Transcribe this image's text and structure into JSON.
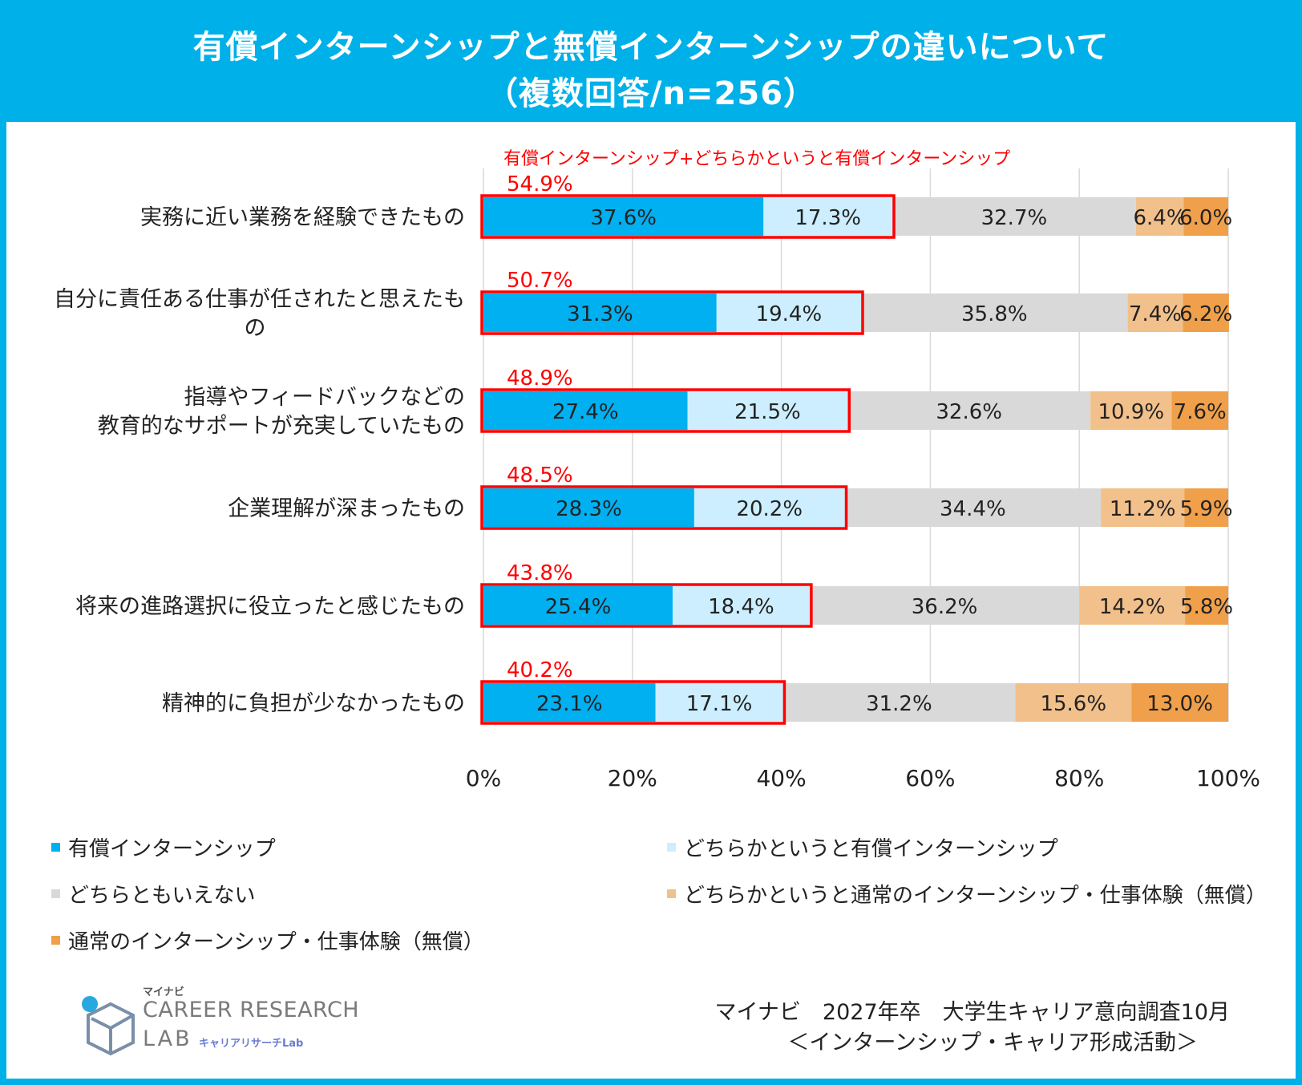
{
  "title": {
    "line1": "有償インターンシップと無償インターンシップの違いについて",
    "line2": "（複数回答/n=256）"
  },
  "chart_data": {
    "type": "bar",
    "orientation": "horizontal",
    "stacked": true,
    "percent_stacked": true,
    "xlim": [
      0,
      100
    ],
    "x_ticks": [
      "0%",
      "20%",
      "40%",
      "60%",
      "80%",
      "100%"
    ],
    "x_tick_values": [
      0,
      20,
      40,
      60,
      80,
      100
    ],
    "grid": "vertical",
    "highlight_label": "有償インターンシップ+どちらかというと有償インターンシップ",
    "categories": [
      [
        "実務に近い業務を経験できたもの"
      ],
      [
        "自分に責任ある仕事が任されたと思えたも",
        "の"
      ],
      [
        "指導やフィードバックなどの",
        "教育的なサポートが充実していたもの"
      ],
      [
        "企業理解が深まったもの"
      ],
      [
        "将来の進路選択に役立ったと感じたもの"
      ],
      [
        "精神的に負担が少なかったもの"
      ]
    ],
    "series": [
      {
        "name": "有償インターンシップ",
        "color": "#00b0f0",
        "values": [
          37.6,
          31.3,
          27.4,
          28.3,
          25.4,
          23.1
        ],
        "labels": [
          "37.6%",
          "31.3%",
          "27.4%",
          "28.3%",
          "25.4%",
          "23.1%"
        ]
      },
      {
        "name": "どちらかというと有償インターンシップ",
        "color": "#cceeff",
        "values": [
          17.3,
          19.4,
          21.5,
          20.2,
          18.4,
          17.1
        ],
        "labels": [
          "17.3%",
          "19.4%",
          "21.5%",
          "20.2%",
          "18.4%",
          "17.1%"
        ]
      },
      {
        "name": "どちらともいえない",
        "color": "#d9d9d9",
        "values": [
          32.7,
          35.8,
          32.6,
          34.4,
          36.2,
          31.2
        ],
        "labels": [
          "32.7%",
          "35.8%",
          "32.6%",
          "34.4%",
          "36.2%",
          "31.2%"
        ]
      },
      {
        "name": "どちらかというと通常のインターンシップ・仕事体験（無償）",
        "color": "#f2c08a",
        "values": [
          6.4,
          7.4,
          10.9,
          11.2,
          14.2,
          15.6
        ],
        "labels": [
          "6.4%",
          "7.4%",
          "10.9%",
          "11.2%",
          "14.2%",
          "15.6%"
        ]
      },
      {
        "name": "通常のインターンシップ・仕事体験（無償）",
        "color": "#f0a04b",
        "values": [
          6.0,
          6.2,
          7.6,
          5.9,
          5.8,
          13.0
        ],
        "labels": [
          "6.0%",
          "6.2%",
          "7.6%",
          "5.9%",
          "5.8%",
          "13.0%"
        ]
      }
    ],
    "highlight_totals": [
      54.9,
      50.7,
      48.9,
      48.5,
      43.8,
      40.2
    ],
    "highlight_total_labels": [
      "54.9%",
      "50.7%",
      "48.9%",
      "48.5%",
      "43.8%",
      "40.2%"
    ],
    "highlight_color": "#ff0000",
    "legend_position": "bottom"
  },
  "logo": {
    "mynavi": "マイナビ",
    "career": "CAREER RESEARCH",
    "lab": "LAB",
    "lab_sub": "キャリアリサーチLab"
  },
  "source": {
    "line1": "マイナビ　2027年卒　大学生キャリア意向調査10月",
    "line2": "＜インターンシップ・キャリア形成活動＞"
  }
}
